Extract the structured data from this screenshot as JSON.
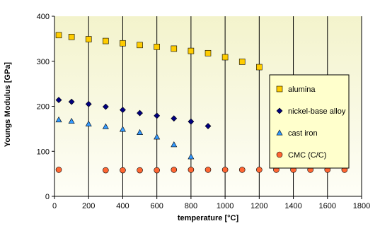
{
  "chart_data": {
    "type": "scatter",
    "xlabel": "temperature [°C]",
    "ylabel": "Youngs Modulus [GPa]",
    "xlim": [
      0,
      1800
    ],
    "ylim": [
      0,
      400
    ],
    "x_ticks": [
      0,
      200,
      400,
      600,
      800,
      1000,
      1200,
      1400,
      1600,
      1800
    ],
    "y_ticks": [
      0,
      100,
      200,
      300,
      400
    ],
    "grid": "vertical",
    "legend_position": "right",
    "series": [
      {
        "name": "alumina",
        "marker": "square",
        "color": "#FFCC00",
        "points": [
          [
            25,
            358
          ],
          [
            100,
            354
          ],
          [
            200,
            349
          ],
          [
            300,
            345
          ],
          [
            400,
            340
          ],
          [
            500,
            336
          ],
          [
            600,
            332
          ],
          [
            700,
            328
          ],
          [
            800,
            323
          ],
          [
            900,
            318
          ],
          [
            1000,
            309
          ],
          [
            1100,
            299
          ],
          [
            1200,
            287
          ]
        ]
      },
      {
        "name": "nickel-base alloy",
        "marker": "diamond",
        "color": "#000080",
        "points": [
          [
            25,
            214
          ],
          [
            100,
            210
          ],
          [
            200,
            205
          ],
          [
            300,
            199
          ],
          [
            400,
            192
          ],
          [
            500,
            185
          ],
          [
            600,
            179
          ],
          [
            700,
            173
          ],
          [
            800,
            166
          ],
          [
            900,
            156
          ]
        ]
      },
      {
        "name": "cast iron",
        "marker": "triangle",
        "color": "#3399FF",
        "points": [
          [
            25,
            170
          ],
          [
            100,
            167
          ],
          [
            200,
            161
          ],
          [
            300,
            155
          ],
          [
            400,
            149
          ],
          [
            500,
            142
          ],
          [
            600,
            132
          ],
          [
            700,
            115
          ],
          [
            800,
            88
          ]
        ]
      },
      {
        "name": "CMC (C/C)",
        "marker": "circle",
        "color": "#FF6633",
        "points": [
          [
            25,
            59
          ],
          [
            300,
            58
          ],
          [
            400,
            58
          ],
          [
            500,
            58
          ],
          [
            600,
            58
          ],
          [
            700,
            59
          ],
          [
            800,
            59
          ],
          [
            900,
            59
          ],
          [
            1000,
            59
          ],
          [
            1100,
            59
          ],
          [
            1200,
            59
          ],
          [
            1300,
            59
          ],
          [
            1400,
            59
          ],
          [
            1500,
            59
          ],
          [
            1600,
            59
          ],
          [
            1700,
            59
          ]
        ]
      }
    ],
    "colors": {
      "plot_gradient_top": "#F3F3CC",
      "plot_gradient_bottom": "#FEFEF7",
      "legend_background": "#FFFFCC"
    }
  }
}
